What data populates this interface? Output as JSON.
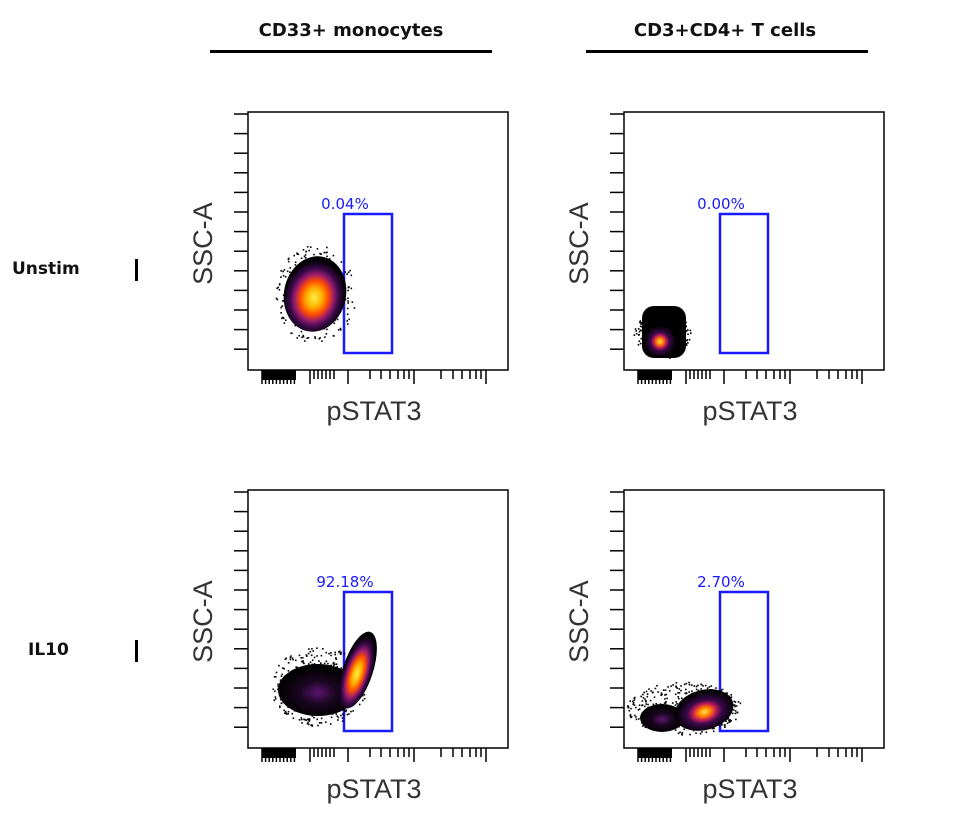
{
  "columns": [
    {
      "label": "CD33+ monocytes"
    },
    {
      "label": "CD3+CD4+ T cells"
    }
  ],
  "rows": [
    {
      "label": "Unstim"
    },
    {
      "label": "IL10"
    }
  ],
  "colors": {
    "gate": "#1a1aff",
    "axis": "#000000",
    "density_low": "#000000",
    "density_mid": "#7a1fa2",
    "density_high": "#ffd21a"
  },
  "chart_data": [
    {
      "type": "scatter",
      "panel": "Unstim / CD33+ monocytes",
      "xlabel": "pSTAT3",
      "ylabel": "SSC-A",
      "gate_label": "0.04%"
    },
    {
      "type": "scatter",
      "panel": "Unstim / CD3+CD4+ T cells",
      "xlabel": "pSTAT3",
      "ylabel": "SSC-A",
      "gate_label": "0.00%"
    },
    {
      "type": "scatter",
      "panel": "IL10 / CD33+ monocytes",
      "xlabel": "pSTAT3",
      "ylabel": "SSC-A",
      "gate_label": "92.18%"
    },
    {
      "type": "scatter",
      "panel": "IL10 / CD3+CD4+ T cells",
      "xlabel": "pSTAT3",
      "ylabel": "SSC-A",
      "gate_label": "2.70%"
    }
  ]
}
